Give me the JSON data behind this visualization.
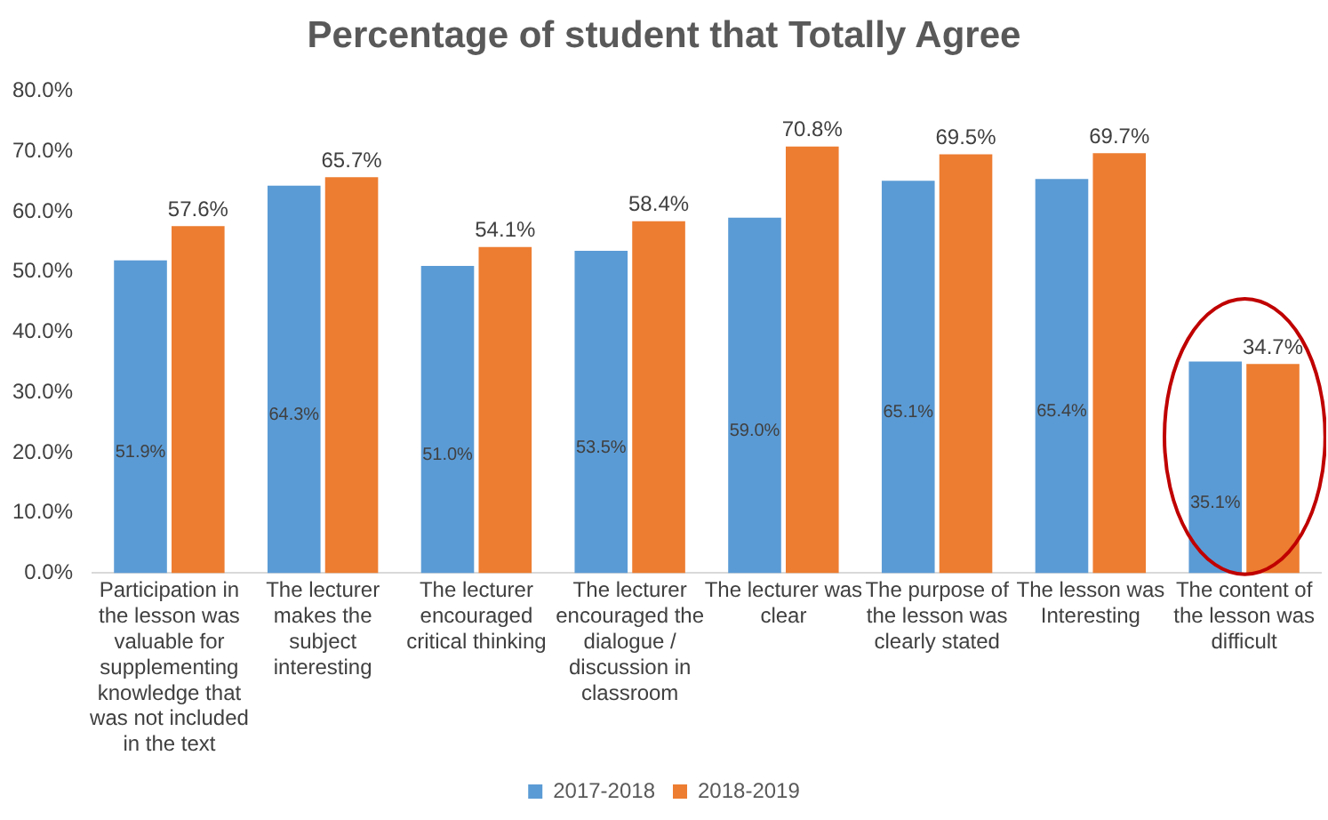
{
  "chart_data": {
    "type": "bar",
    "title": "Percentage of student that Totally Agree",
    "categories": [
      "Participation in the lesson was valuable for supplementing knowledge that was not included in the text",
      "The lecturer makes the subject interesting",
      "The lecturer encouraged critical thinking",
      "The lecturer encouraged the dialogue / discussion in classroom",
      "The lecturer was clear",
      "The purpose of the lesson was clearly stated",
      "The lesson was Interesting",
      "The content of the lesson was difficult"
    ],
    "series": [
      {
        "name": "2017-2018",
        "color": "#5b9bd5",
        "values": [
          51.9,
          64.3,
          51.0,
          53.5,
          59.0,
          65.1,
          65.4,
          35.1
        ],
        "value_labels": [
          "51.9%",
          "64.3%",
          "51.0%",
          "53.5%",
          "59.0%",
          "65.1%",
          "65.4%",
          "35.1%"
        ]
      },
      {
        "name": "2018-2019",
        "color": "#ed7d31",
        "values": [
          57.6,
          65.7,
          54.1,
          58.4,
          70.8,
          69.5,
          69.7,
          34.7
        ],
        "value_labels": [
          "57.6%",
          "65.7%",
          "54.1%",
          "58.4%",
          "70.8%",
          "69.5%",
          "69.7%",
          "34.7%"
        ]
      }
    ],
    "ylim": [
      0,
      80
    ],
    "yticks": [
      {
        "value": 0,
        "label": "0.0%"
      },
      {
        "value": 10,
        "label": "10.0%"
      },
      {
        "value": 20,
        "label": "20.0%"
      },
      {
        "value": 30,
        "label": "30.0%"
      },
      {
        "value": 40,
        "label": "40.0%"
      },
      {
        "value": 50,
        "label": "50.0%"
      },
      {
        "value": 60,
        "label": "60.0%"
      },
      {
        "value": 70,
        "label": "70.0%"
      },
      {
        "value": 80,
        "label": "80.0%"
      }
    ],
    "grid": false,
    "legend": "bottom"
  }
}
